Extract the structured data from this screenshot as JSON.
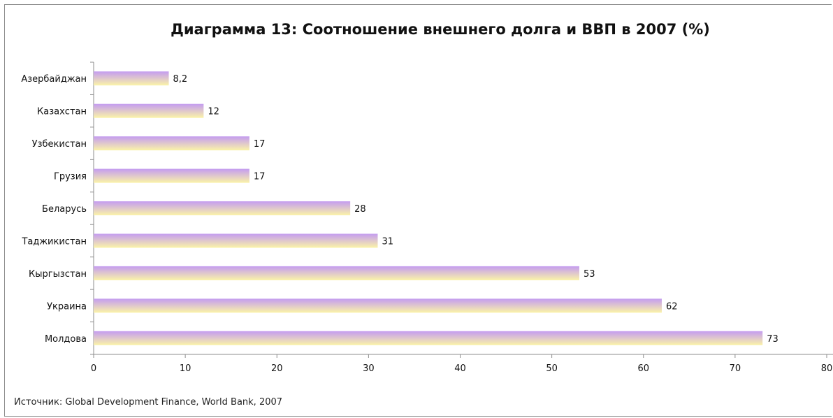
{
  "chart_data": {
    "type": "bar",
    "orientation": "horizontal",
    "title": "Диаграмма 13: Соотношение внешнего долга и ВВП в 2007 (%)",
    "categories": [
      "Азербайджан",
      "Казахстан",
      "Узбекистан",
      "Грузия",
      "Беларусь",
      "Таджикистан",
      "Кыргызстан",
      "Украина",
      "Молдова"
    ],
    "values": [
      8.2,
      12,
      17,
      17,
      28,
      31,
      53,
      62,
      73
    ],
    "data_labels": [
      "8,2",
      "12",
      "17",
      "17",
      "28",
      "31",
      "53",
      "62",
      "73"
    ],
    "xlim": [
      0,
      80
    ],
    "ticks": [
      0,
      10,
      20,
      30,
      40,
      50,
      60,
      70,
      80
    ],
    "grid": false,
    "legend": "none",
    "colors": {
      "bar_top": "#c49cf0",
      "bar_bottom": "#fbf3a8"
    }
  },
  "source_note": "Источник: Global Development Finance, World Bank, 2007"
}
